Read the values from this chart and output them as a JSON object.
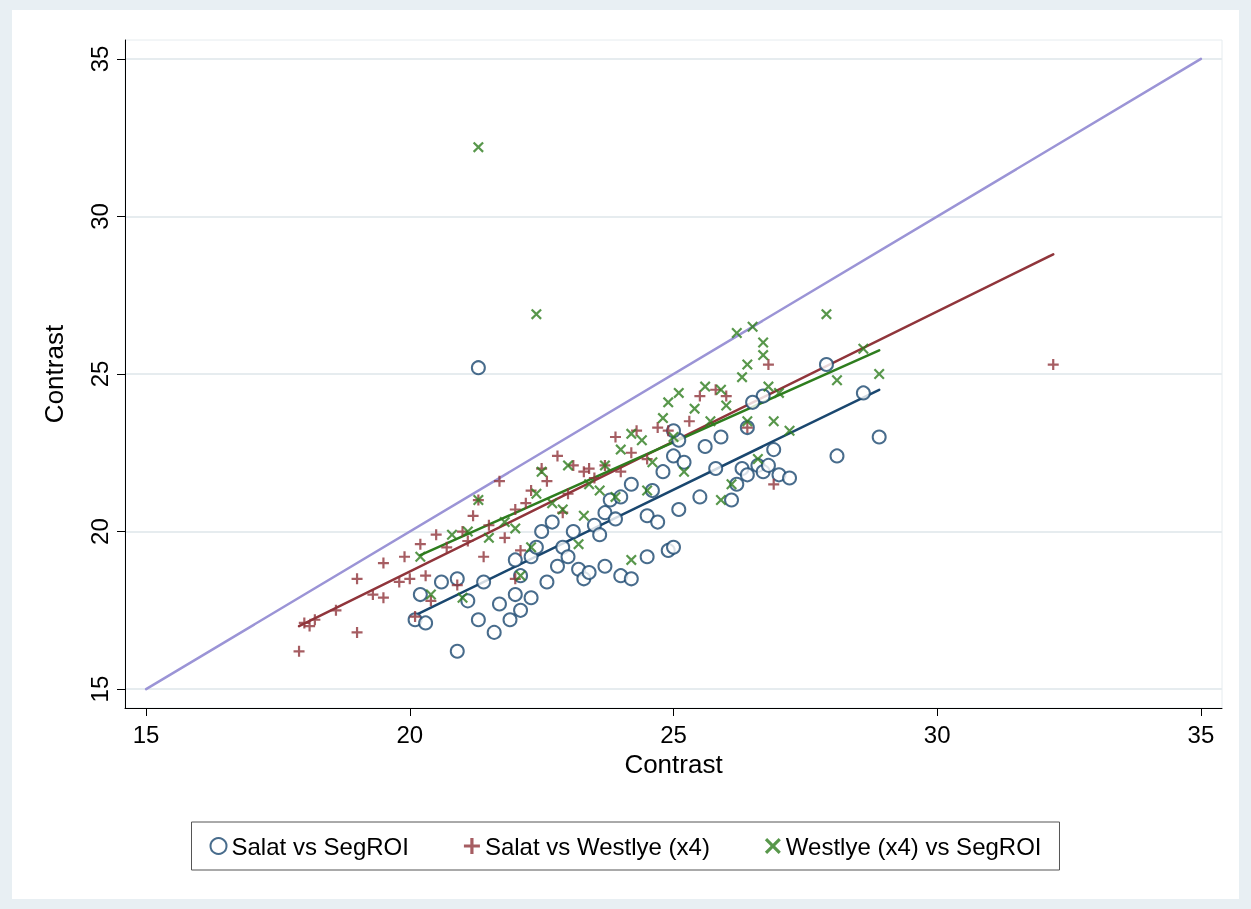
{
  "chart_data": {
    "type": "scatter",
    "xlabel": "Contrast",
    "ylabel": "Contrast",
    "xlim": [
      14.6,
      35.4
    ],
    "ylim": [
      14.4,
      35.6
    ],
    "xticks": [
      15,
      20,
      25,
      30,
      35
    ],
    "yticks": [
      15,
      20,
      25,
      30,
      35
    ],
    "grid": "y",
    "legend": "bottom",
    "series": [
      {
        "name": "Salat vs SegROI",
        "color": "#1a476f",
        "marker": "circle",
        "x": [
          20.1,
          20.2,
          20.3,
          20.6,
          20.9,
          20.9,
          21.1,
          21.3,
          21.3,
          21.4,
          21.6,
          21.7,
          21.9,
          22.0,
          22.0,
          22.1,
          22.1,
          22.3,
          22.3,
          22.4,
          22.5,
          22.6,
          22.7,
          22.8,
          22.9,
          23.0,
          23.1,
          23.2,
          23.3,
          23.4,
          23.5,
          23.6,
          23.7,
          23.7,
          23.8,
          23.9,
          24.0,
          24.0,
          24.2,
          24.2,
          24.5,
          24.5,
          24.6,
          24.7,
          24.8,
          24.9,
          25.0,
          25.0,
          25.1,
          25.1,
          25.2,
          25.5,
          25.6,
          25.8,
          25.9,
          26.1,
          26.2,
          26.3,
          26.4,
          26.4,
          26.6,
          26.7,
          26.7,
          26.8,
          26.9,
          27.0,
          27.2,
          27.9,
          28.1,
          28.6,
          28.9,
          26.5,
          25.0
        ],
        "values": [
          17.2,
          18.0,
          17.1,
          18.4,
          16.2,
          18.5,
          17.8,
          17.2,
          25.2,
          18.4,
          16.8,
          17.7,
          17.2,
          18.0,
          19.1,
          17.5,
          18.6,
          19.2,
          17.9,
          19.5,
          20.0,
          18.4,
          20.3,
          18.9,
          19.5,
          19.2,
          20.0,
          18.8,
          18.5,
          18.7,
          20.2,
          19.9,
          18.9,
          20.6,
          21.0,
          20.4,
          18.6,
          21.1,
          18.5,
          21.5,
          19.2,
          20.5,
          21.3,
          20.3,
          21.9,
          19.4,
          19.5,
          22.4,
          22.9,
          20.7,
          22.2,
          21.1,
          22.7,
          22.0,
          23.0,
          21.0,
          21.5,
          22.0,
          21.8,
          23.3,
          22.1,
          21.9,
          24.3,
          22.1,
          22.6,
          21.8,
          21.7,
          25.3,
          22.4,
          24.4,
          23.0,
          24.1,
          23.2
        ]
      },
      {
        "name": "Salat vs Westlye (x4)",
        "color": "#90353b",
        "marker": "cross",
        "x": [
          17.9,
          18.0,
          18.2,
          18.6,
          19.0,
          19.0,
          19.3,
          19.5,
          19.5,
          19.8,
          19.9,
          20.0,
          20.1,
          20.2,
          20.3,
          20.4,
          20.5,
          20.7,
          20.9,
          21.0,
          21.1,
          21.2,
          21.3,
          21.4,
          21.5,
          21.7,
          21.8,
          22.0,
          22.1,
          22.2,
          22.3,
          22.5,
          22.6,
          22.8,
          22.9,
          23.0,
          23.1,
          23.3,
          23.4,
          23.5,
          23.7,
          23.9,
          24.0,
          24.2,
          24.3,
          24.5,
          24.7,
          24.9,
          25.3,
          25.5,
          25.8,
          26.0,
          26.4,
          26.8,
          26.9,
          32.2,
          18.1,
          22.0
        ],
        "values": [
          16.2,
          17.1,
          17.2,
          17.5,
          16.8,
          18.5,
          18.0,
          17.9,
          19.0,
          18.4,
          19.2,
          18.5,
          17.3,
          19.6,
          18.6,
          17.8,
          19.9,
          19.5,
          18.3,
          20.0,
          19.7,
          20.5,
          21.0,
          19.2,
          20.2,
          21.6,
          19.8,
          20.7,
          19.4,
          20.9,
          21.3,
          22.0,
          21.6,
          22.4,
          20.6,
          21.2,
          22.1,
          21.9,
          22.0,
          21.7,
          22.1,
          23.0,
          21.9,
          22.5,
          23.2,
          22.3,
          23.3,
          23.2,
          23.5,
          24.3,
          24.5,
          24.3,
          23.3,
          25.3,
          21.5,
          25.3,
          17.0,
          18.5
        ]
      },
      {
        "name": "Westlye (x4) vs SegROI",
        "color": "#2e7d1e",
        "marker": "x",
        "x": [
          20.2,
          20.4,
          20.8,
          21.0,
          21.1,
          21.3,
          21.3,
          21.5,
          21.8,
          22.0,
          22.1,
          22.3,
          22.4,
          22.4,
          22.5,
          22.7,
          22.9,
          23.0,
          23.2,
          23.3,
          23.4,
          23.6,
          23.7,
          23.9,
          24.0,
          24.2,
          24.2,
          24.4,
          24.5,
          24.6,
          24.8,
          24.9,
          25.0,
          25.1,
          25.2,
          25.4,
          25.6,
          25.7,
          25.9,
          26.0,
          26.1,
          26.2,
          26.3,
          26.4,
          26.4,
          26.5,
          26.6,
          26.7,
          26.7,
          26.8,
          26.9,
          27.0,
          27.2,
          27.9,
          28.1,
          28.6,
          28.9,
          25.9
        ],
        "values": [
          19.2,
          18.0,
          19.9,
          17.9,
          20.0,
          32.2,
          21.0,
          19.8,
          20.3,
          20.1,
          18.6,
          19.5,
          26.9,
          21.2,
          21.9,
          20.9,
          20.7,
          22.1,
          19.6,
          20.5,
          21.5,
          21.3,
          22.1,
          21.1,
          22.6,
          23.1,
          19.1,
          22.9,
          21.3,
          22.2,
          23.6,
          24.1,
          23.0,
          24.4,
          21.9,
          23.9,
          24.6,
          23.5,
          24.5,
          24.0,
          21.5,
          26.3,
          24.9,
          25.3,
          23.5,
          26.5,
          22.3,
          26.0,
          25.6,
          24.6,
          23.5,
          24.4,
          23.2,
          26.9,
          24.8,
          25.8,
          25.0,
          21.0
        ]
      },
      {
        "type": "line",
        "color": "#1a476f",
        "marker": "none",
        "line_style": "solid",
        "x": [
          20.05,
          28.9
        ],
        "values": [
          17.3,
          24.5
        ]
      },
      {
        "type": "line",
        "color": "#90353b",
        "marker": "none",
        "line_style": "solid",
        "x": [
          17.9,
          32.2
        ],
        "values": [
          17.0,
          28.8
        ]
      },
      {
        "type": "line",
        "color": "#2e7d1e",
        "marker": "none",
        "line_style": "solid",
        "x": [
          20.2,
          28.9
        ],
        "values": [
          19.25,
          25.75
        ]
      },
      {
        "type": "line",
        "color": "#9b94d6",
        "marker": "none",
        "line_style": "solid",
        "x": [
          15,
          35
        ],
        "values": [
          15,
          35
        ]
      }
    ]
  }
}
